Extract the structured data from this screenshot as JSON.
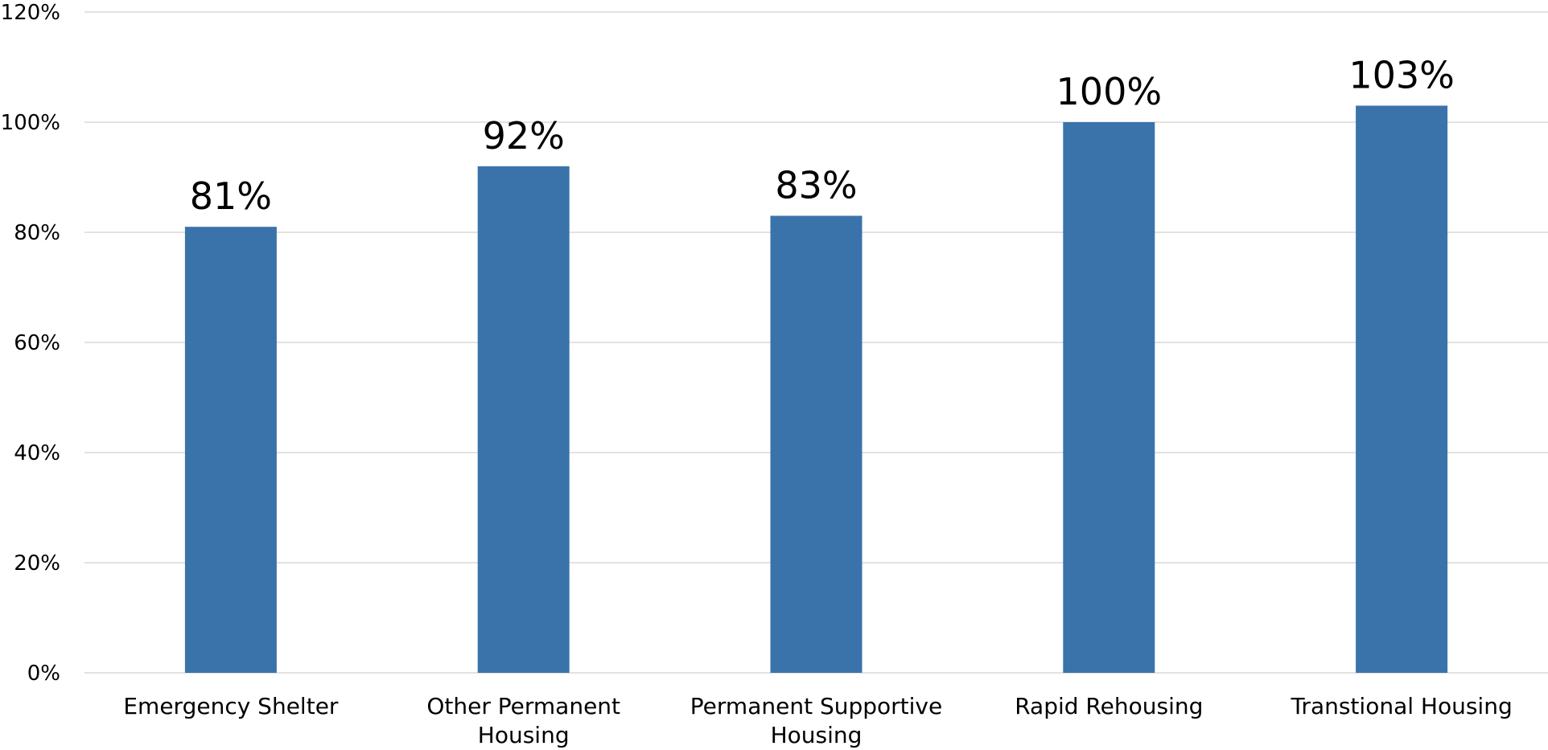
{
  "chart_data": {
    "type": "bar",
    "title": "",
    "xlabel": "",
    "ylabel": "",
    "categories": [
      "Emergency Shelter",
      "Other Permanent Housing",
      "Permanent Supportive Housing",
      "Rapid Rehousing",
      "Transtional Housing"
    ],
    "values": [
      81,
      92,
      83,
      100,
      103
    ],
    "data_labels": [
      "81%",
      "92%",
      "83%",
      "100%",
      "103%"
    ],
    "ylim": [
      0,
      120
    ],
    "yticks": [
      0,
      20,
      40,
      60,
      80,
      100,
      120
    ],
    "ytick_labels": [
      "0%",
      "20%",
      "40%",
      "60%",
      "80%",
      "100%",
      "120%"
    ],
    "grid": true,
    "legend": "none",
    "bar_color": "#3a73aa"
  }
}
